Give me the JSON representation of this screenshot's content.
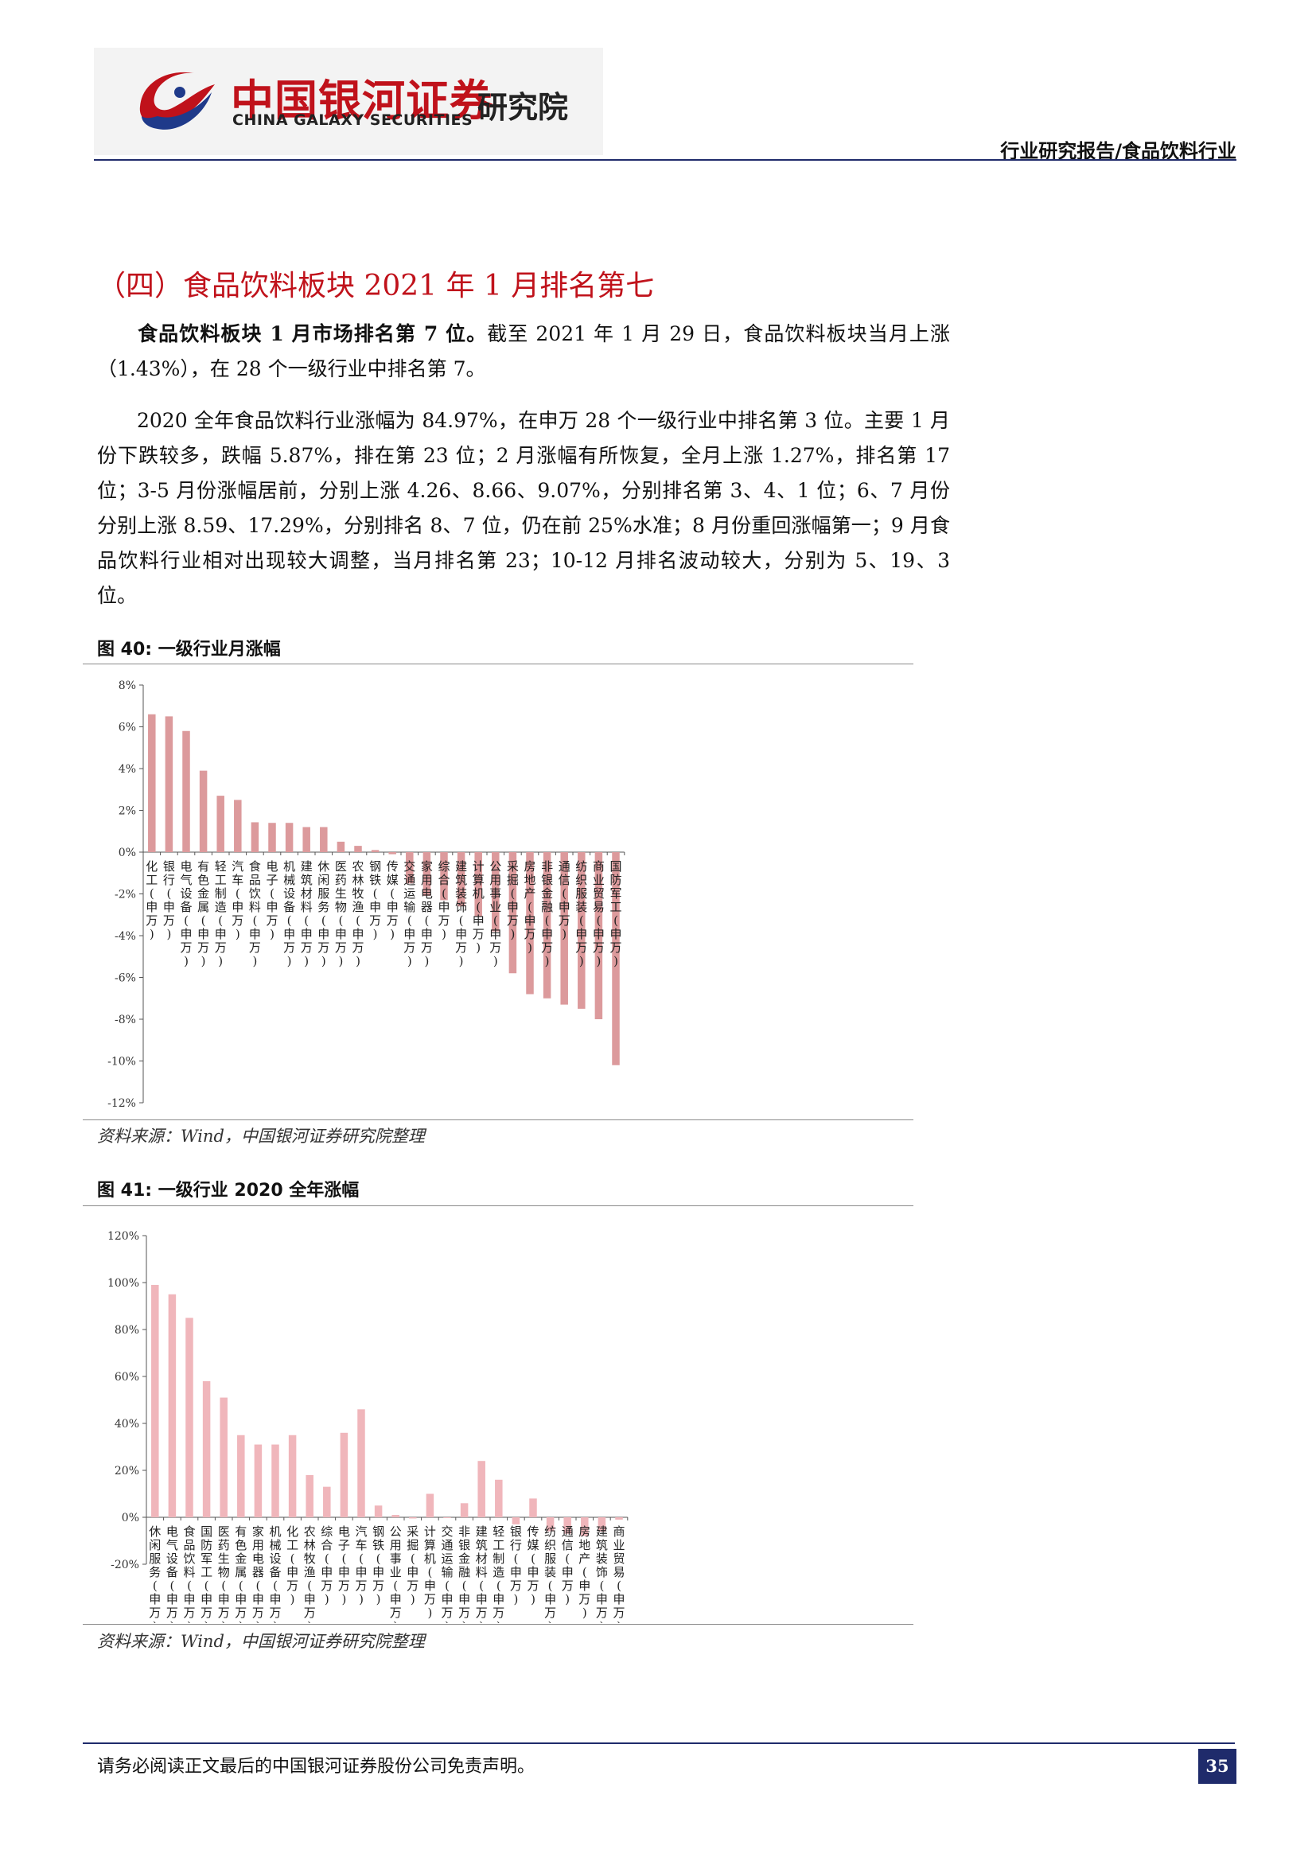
{
  "header": {
    "logo_cn": "中国银河证券",
    "logo_en": "CHINA GALAXY SECURITIES",
    "logo_inst": "研究院",
    "report_type": "行业研究报告/食品饮料行业"
  },
  "section": {
    "title": "（四）食品饮料板块 2021 年 1 月排名第七",
    "para1_bold": "食品饮料板块 1 月市场排名第 7 位。",
    "para1_rest": "截至 2021 年 1 月 29 日，食品饮料板块当月上涨（1.43%），在 28 个一级行业中排名第 7。",
    "para2": "2020 全年食品饮料行业涨幅为 84.97%，在申万 28 个一级行业中排名第 3 位。主要 1 月份下跌较多，跌幅 5.87%，排在第 23 位；2 月涨幅有所恢复，全月上涨 1.27%，排名第 17 位；3-5 月份涨幅居前，分别上涨 4.26、8.66、9.07%，分别排名第 3、4、1 位；6、7 月份分别上涨 8.59、17.29%，分别排名 8、7 位，仍在前 25%水准；8 月份重回涨幅第一；9 月食品饮料行业相对出现较大调整，当月排名第 23；10-12 月排名波动较大，分别为 5、19、3 位。"
  },
  "figures": [
    {
      "title": "图 40:  一级行业月涨幅",
      "source": "资料来源：Wind，中国银河证券研究院整理"
    },
    {
      "title": "图 41:  一级行业 2020 全年涨幅",
      "source": "资料来源：Wind，中国银河证券研究院整理"
    }
  ],
  "chart_data": [
    {
      "type": "bar",
      "title": "图 40:  一级行业月涨幅",
      "color": "#dc9a9c",
      "ylim": [
        -12,
        8
      ],
      "yticks": [
        8,
        6,
        4,
        2,
        0,
        -2,
        -4,
        -6,
        -8,
        -10,
        -12
      ],
      "ytick_labels": [
        "8%",
        "6%",
        "4%",
        "2%",
        "0%",
        "-2%",
        "-4%",
        "-6%",
        "-8%",
        "-10%",
        "-12%"
      ],
      "categories": [
        "化工(申万)",
        "银行(申万)",
        "电气设备(申万)",
        "有色金属(申万)",
        "轻工制造(申万)",
        "汽车(申万)",
        "食品饮料(申万)",
        "电子(申万)",
        "机械设备(申万)",
        "建筑材料(申万)",
        "休闲服务(申万)",
        "医药生物(申万)",
        "农林牧渔(申万)",
        "钢铁(申万)",
        "传媒(申万)",
        "交通运输(申万)",
        "家用电器(申万)",
        "综合(申万)",
        "建筑装饰(申万)",
        "计算机(申万)",
        "公用事业(申万)",
        "采掘(申万)",
        "房地产(申万)",
        "非银金融(申万)",
        "通信(申万)",
        "纺织服装(申万)",
        "商业贸易(申万)",
        "国防军工(申万)"
      ],
      "values": [
        6.6,
        6.5,
        5.8,
        3.9,
        2.7,
        2.5,
        1.43,
        1.4,
        1.4,
        1.2,
        1.2,
        0.5,
        0.3,
        0.1,
        -0.1,
        -1.5,
        -2.1,
        -2.3,
        -2.6,
        -3.1,
        -3.8,
        -5.8,
        -6.8,
        -7.0,
        -7.3,
        -7.5,
        -8.0,
        -10.2
      ],
      "grid": false
    },
    {
      "type": "bar",
      "title": "图 41:  一级行业 2020 全年涨幅",
      "color": "#f0b6bb",
      "ylim": [
        -20,
        120
      ],
      "yticks": [
        120,
        100,
        80,
        60,
        40,
        20,
        0,
        -20
      ],
      "ytick_labels": [
        "120%",
        "100%",
        "80%",
        "60%",
        "40%",
        "20%",
        "0%",
        "-20%"
      ],
      "categories": [
        "休闲服务(申万)",
        "电气设备(申万)",
        "食品饮料(申万)",
        "国防军工(申万)",
        "医药生物(申万)",
        "有色金属(申万)",
        "家用电器(申万)",
        "机械设备(申万)",
        "化工(申万)",
        "农林牧渔(申万)",
        "综合(申万)",
        "电子(申万)",
        "汽车(申万)",
        "钢铁(申万)",
        "公用事业(申万)",
        "采掘(申万)",
        "计算机(申万)",
        "交通运输(申万)",
        "非银金融(申万)",
        "建筑材料(申万)",
        "轻工制造(申万)",
        "银行(申万)",
        "传媒(申万)",
        "纺织服装(申万)",
        "通信(申万)",
        "房地产(申万)",
        "建筑装饰(申万)",
        "商业贸易(申万)"
      ],
      "values": [
        99,
        95,
        84.97,
        58,
        51,
        35,
        31,
        31,
        35,
        18,
        13,
        36,
        46,
        5,
        1,
        -0.5,
        10,
        -0.3,
        6,
        24,
        16,
        -3,
        8,
        -6,
        -7,
        -8,
        -6,
        -1
      ],
      "grid": false
    }
  ],
  "footer": {
    "disclaimer": "请务必阅读正文最后的中国银河证券股份公司免责声明。",
    "page": "35"
  }
}
